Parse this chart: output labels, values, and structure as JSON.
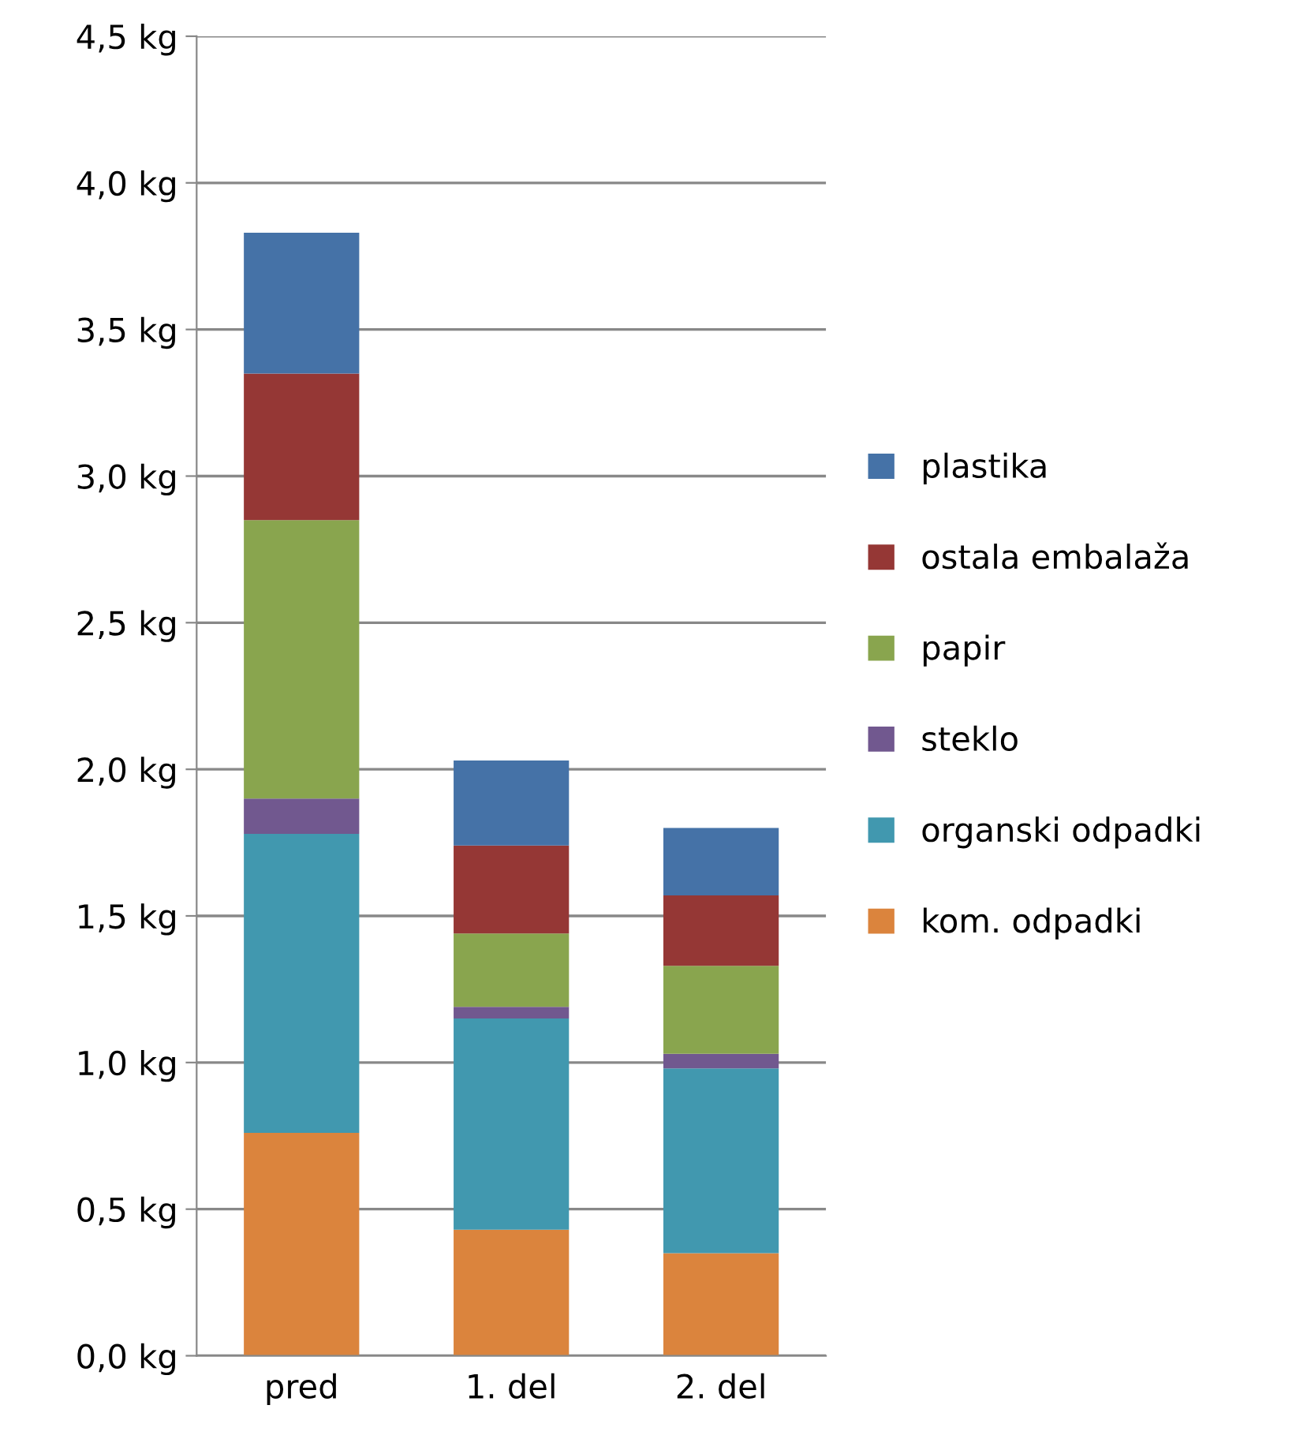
{
  "chart_data": {
    "type": "bar",
    "stacked": true,
    "categories": [
      "pred",
      "1. del",
      "2. del"
    ],
    "series": [
      {
        "name": "kom. odpadki",
        "color": "#db843d",
        "values": [
          0.76,
          0.43,
          0.35
        ]
      },
      {
        "name": "organski odpadki",
        "color": "#4198af",
        "values": [
          1.02,
          0.72,
          0.63
        ]
      },
      {
        "name": "steklo",
        "color": "#71588f",
        "values": [
          0.12,
          0.04,
          0.05
        ]
      },
      {
        "name": "papir",
        "color": "#89a54e",
        "values": [
          0.95,
          0.25,
          0.3
        ]
      },
      {
        "name": "ostala embalaža",
        "color": "#953735",
        "values": [
          0.5,
          0.3,
          0.24
        ]
      },
      {
        "name": "plastika",
        "color": "#4572a7",
        "values": [
          0.48,
          0.29,
          0.23
        ]
      }
    ],
    "ylim": [
      0,
      4.5
    ],
    "yticks": [
      {
        "value": 0,
        "label": "0,0 kg"
      },
      {
        "value": 0.5,
        "label": "0,5 kg"
      },
      {
        "value": 1.0,
        "label": "1,0 kg"
      },
      {
        "value": 1.5,
        "label": "1,5 kg"
      },
      {
        "value": 2.0,
        "label": "2,0 kg"
      },
      {
        "value": 2.5,
        "label": "2,5 kg"
      },
      {
        "value": 3.0,
        "label": "3,0 kg"
      },
      {
        "value": 3.5,
        "label": "3,5 kg"
      },
      {
        "value": 4.0,
        "label": "4,0 kg"
      },
      {
        "value": 4.5,
        "label": "4,5 kg"
      }
    ],
    "grid": "y",
    "legend": "right"
  }
}
